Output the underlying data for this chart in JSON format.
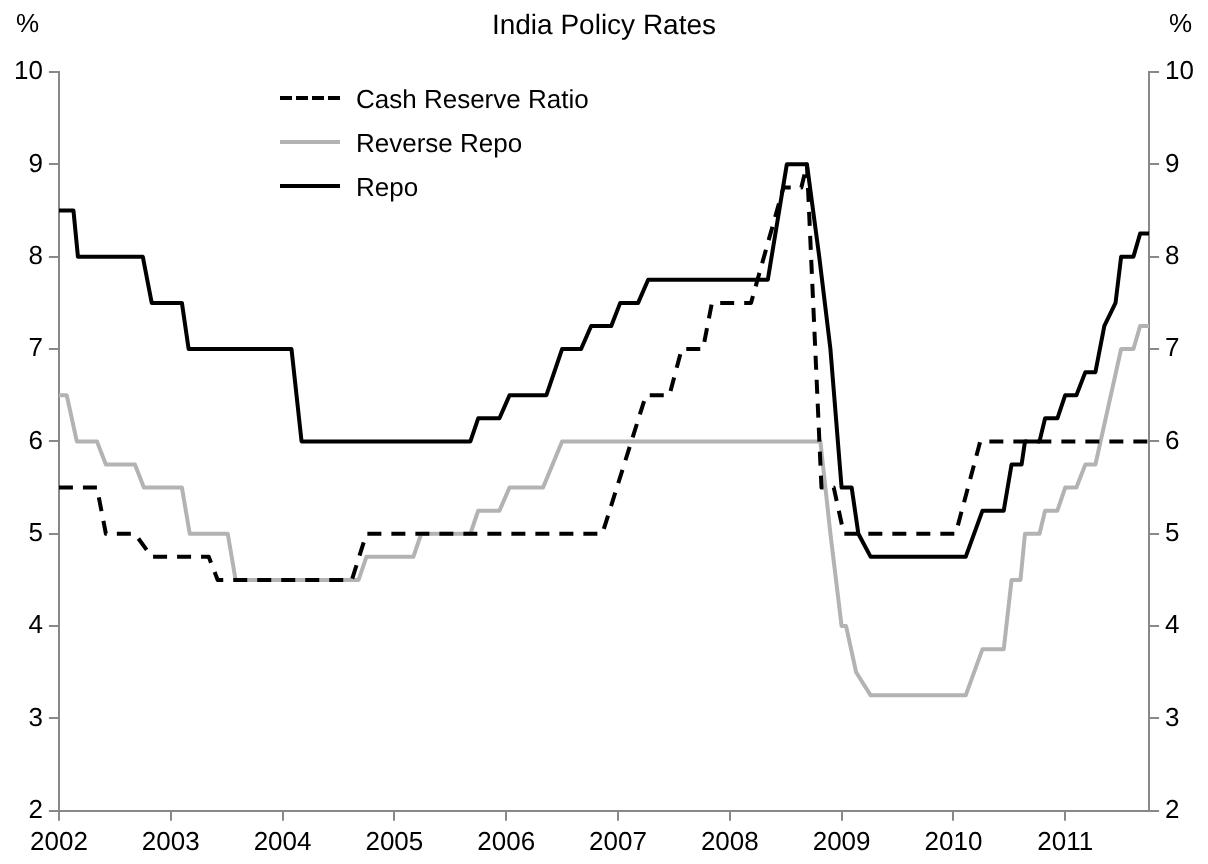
{
  "chart_data": {
    "type": "line",
    "title": "India Policy Rates",
    "ylabel": "%",
    "y2label": "%",
    "xlim": [
      2002,
      2011.75
    ],
    "xticks": [
      2002,
      2003,
      2004,
      2005,
      2006,
      2007,
      2008,
      2009,
      2010,
      2011
    ],
    "ylim": [
      2,
      10
    ],
    "yticks": [
      2,
      3,
      4,
      5,
      6,
      7,
      8,
      9,
      10
    ],
    "y2lim": [
      2,
      10
    ],
    "y2ticks": [
      2,
      3,
      4,
      5,
      6,
      7,
      8,
      9,
      10
    ],
    "grid": false,
    "legend": "top left",
    "marker": "none",
    "series": [
      {
        "name": "Cash Reserve Ratio",
        "color": "#000000",
        "line_style": "dashed",
        "x": [
          2002,
          2002.34,
          2002.42,
          2002.68,
          2002.83,
          2003.34,
          2003.42,
          2004.62,
          2004.75,
          2006.86,
          2007.25,
          2007.46,
          2007.57,
          2007.76,
          2007.84,
          2008.19,
          2008.48,
          2008.64,
          2008.69,
          2008.82,
          2008.93,
          2009.02,
          2010.02,
          2010.24,
          2011.75
        ],
        "values": [
          5.5,
          5.5,
          5,
          5,
          4.75,
          4.75,
          4.5,
          4.5,
          5,
          5,
          6.5,
          6.5,
          7,
          7,
          7.5,
          7.5,
          8.75,
          8.75,
          9,
          5.5,
          5.5,
          5,
          5,
          6,
          6
        ]
      },
      {
        "name": "Reverse Repo",
        "color": "#b3b3b3",
        "line_style": "solid",
        "x": [
          2002,
          2002.07,
          2002.16,
          2002.34,
          2002.42,
          2002.68,
          2002.76,
          2003.1,
          2003.17,
          2003.51,
          2003.58,
          2004.68,
          2004.75,
          2005.17,
          2005.24,
          2005.68,
          2005.75,
          2005.94,
          2006.03,
          2006.33,
          2006.5,
          2008.81,
          2008.9,
          2009,
          2009.04,
          2009.13,
          2009.26,
          2010.11,
          2010.26,
          2010.45,
          2010.52,
          2010.6,
          2010.64,
          2010.77,
          2010.82,
          2010.93,
          2011,
          2011.1,
          2011.18,
          2011.27,
          2011.5,
          2011.61,
          2011.67,
          2011.75
        ],
        "values": [
          6.5,
          6.5,
          6,
          6,
          5.75,
          5.75,
          5.5,
          5.5,
          5,
          5,
          4.5,
          4.5,
          4.75,
          4.75,
          5,
          5,
          5.25,
          5.25,
          5.5,
          5.5,
          6,
          6,
          5,
          4,
          4,
          3.5,
          3.25,
          3.25,
          3.75,
          3.75,
          4.5,
          4.5,
          5,
          5,
          5.25,
          5.25,
          5.5,
          5.5,
          5.75,
          5.75,
          7,
          7,
          7.25,
          7.25
        ]
      },
      {
        "name": "Repo",
        "color": "#000000",
        "line_style": "solid",
        "x": [
          2002,
          2002.13,
          2002.17,
          2002.75,
          2002.83,
          2003.1,
          2003.16,
          2004.08,
          2004.17,
          2005.68,
          2005.75,
          2005.94,
          2006.03,
          2006.36,
          2006.5,
          2006.67,
          2006.76,
          2006.94,
          2007.02,
          2007.18,
          2007.27,
          2008.34,
          2008.51,
          2008.69,
          2008.8,
          2008.9,
          2009,
          2009.09,
          2009.15,
          2009.26,
          2010.11,
          2010.26,
          2010.45,
          2010.52,
          2010.61,
          2010.64,
          2010.77,
          2010.82,
          2010.93,
          2011,
          2011.1,
          2011.18,
          2011.27,
          2011.35,
          2011.45,
          2011.5,
          2011.61,
          2011.67,
          2011.75
        ],
        "values": [
          8.5,
          8.5,
          8,
          8,
          7.5,
          7.5,
          7,
          7,
          6,
          6,
          6.25,
          6.25,
          6.5,
          6.5,
          7,
          7,
          7.25,
          7.25,
          7.5,
          7.5,
          7.75,
          7.75,
          9,
          9,
          8,
          7,
          5.5,
          5.5,
          5,
          4.75,
          4.75,
          5.25,
          5.25,
          5.75,
          5.75,
          6,
          6,
          6.25,
          6.25,
          6.5,
          6.5,
          6.75,
          6.75,
          7.25,
          7.5,
          8,
          8,
          8.25,
          8.25
        ]
      }
    ]
  }
}
